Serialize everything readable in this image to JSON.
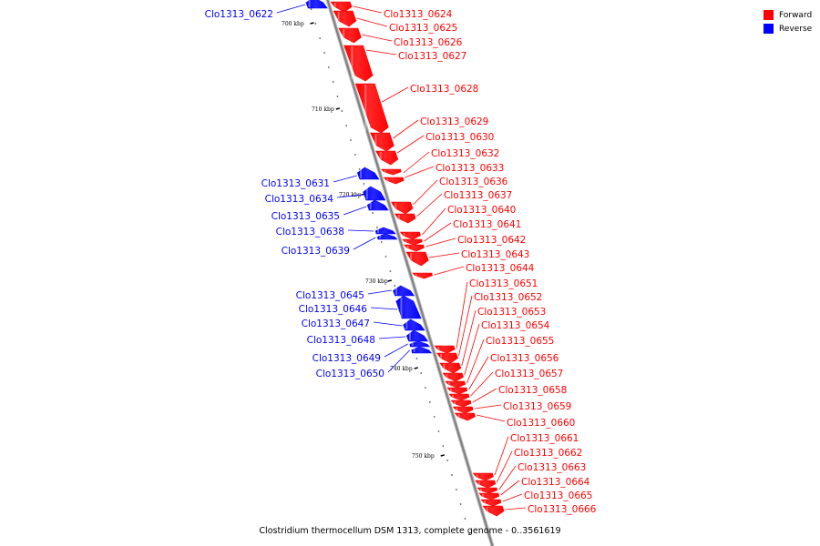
{
  "legend": [
    {
      "label": "Forward",
      "color": "#ff0000"
    },
    {
      "label": "Reverse",
      "color": "#0000ff"
    }
  ],
  "caption": "Clostridium thermocellum DSM 1313, complete genome - 0..3561619",
  "colors": {
    "forward": "#ff0000",
    "reverse": "#0000ff",
    "axis": "#808080"
  },
  "ticks": [
    "700 kbp",
    "710 kbp",
    "720 kbp",
    "730 kbp",
    "740 kbp",
    "750 kbp"
  ],
  "genes": [
    {
      "id": "Clo1313_0622",
      "strand": "reverse"
    },
    {
      "id": "Clo1313_0624",
      "strand": "forward"
    },
    {
      "id": "Clo1313_0625",
      "strand": "forward"
    },
    {
      "id": "Clo1313_0626",
      "strand": "forward"
    },
    {
      "id": "Clo1313_0627",
      "strand": "forward"
    },
    {
      "id": "Clo1313_0628",
      "strand": "forward"
    },
    {
      "id": "Clo1313_0629",
      "strand": "forward"
    },
    {
      "id": "Clo1313_0630",
      "strand": "forward"
    },
    {
      "id": "Clo1313_0632",
      "strand": "forward"
    },
    {
      "id": "Clo1313_0633",
      "strand": "forward"
    },
    {
      "id": "Clo1313_0631",
      "strand": "reverse"
    },
    {
      "id": "Clo1313_0636",
      "strand": "forward"
    },
    {
      "id": "Clo1313_0634",
      "strand": "reverse"
    },
    {
      "id": "Clo1313_0637",
      "strand": "forward"
    },
    {
      "id": "Clo1313_0640",
      "strand": "forward"
    },
    {
      "id": "Clo1313_0635",
      "strand": "reverse"
    },
    {
      "id": "Clo1313_0641",
      "strand": "forward"
    },
    {
      "id": "Clo1313_0638",
      "strand": "reverse"
    },
    {
      "id": "Clo1313_0642",
      "strand": "forward"
    },
    {
      "id": "Clo1313_0639",
      "strand": "reverse"
    },
    {
      "id": "Clo1313_0643",
      "strand": "forward"
    },
    {
      "id": "Clo1313_0644",
      "strand": "forward"
    },
    {
      "id": "Clo1313_0651",
      "strand": "forward"
    },
    {
      "id": "Clo1313_0645",
      "strand": "reverse"
    },
    {
      "id": "Clo1313_0652",
      "strand": "forward"
    },
    {
      "id": "Clo1313_0646",
      "strand": "reverse"
    },
    {
      "id": "Clo1313_0653",
      "strand": "forward"
    },
    {
      "id": "Clo1313_0647",
      "strand": "reverse"
    },
    {
      "id": "Clo1313_0654",
      "strand": "forward"
    },
    {
      "id": "Clo1313_0648",
      "strand": "reverse"
    },
    {
      "id": "Clo1313_0655",
      "strand": "forward"
    },
    {
      "id": "Clo1313_0649",
      "strand": "reverse"
    },
    {
      "id": "Clo1313_0656",
      "strand": "forward"
    },
    {
      "id": "Clo1313_0650",
      "strand": "reverse"
    },
    {
      "id": "Clo1313_0657",
      "strand": "forward"
    },
    {
      "id": "Clo1313_0658",
      "strand": "forward"
    },
    {
      "id": "Clo1313_0659",
      "strand": "forward"
    },
    {
      "id": "Clo1313_0660",
      "strand": "forward"
    },
    {
      "id": "Clo1313_0661",
      "strand": "forward"
    },
    {
      "id": "Clo1313_0662",
      "strand": "forward"
    },
    {
      "id": "Clo1313_0663",
      "strand": "forward"
    },
    {
      "id": "Clo1313_0664",
      "strand": "forward"
    },
    {
      "id": "Clo1313_0665",
      "strand": "forward"
    },
    {
      "id": "Clo1313_0666",
      "strand": "forward"
    }
  ]
}
